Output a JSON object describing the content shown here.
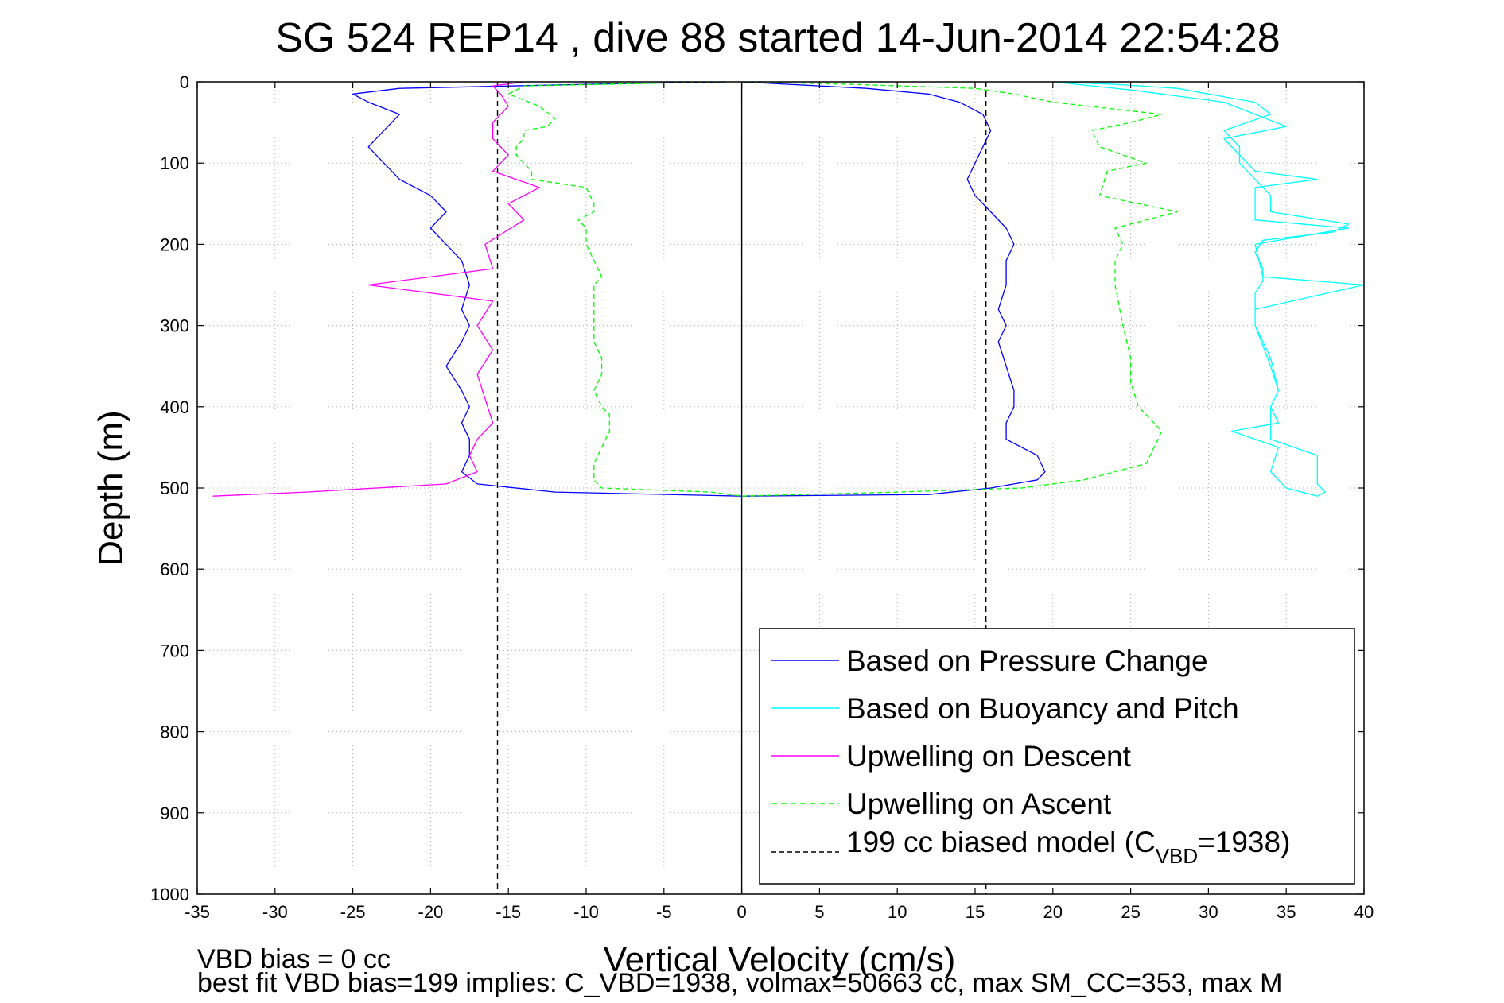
{
  "chart_data": {
    "type": "line",
    "title": "SG 524   REP14  , dive 88 started 14-Jun-2014 22:54:28",
    "xlabel": "Vertical Velocity (cm/s)",
    "ylabel": "Depth (m)",
    "xlim": [
      -35,
      40
    ],
    "ylim": [
      0,
      1000
    ],
    "y_reversed": true,
    "grid": true,
    "legend_position": "bottom-right",
    "x_ticks": [
      -35,
      -30,
      -25,
      -20,
      -15,
      -10,
      -5,
      0,
      5,
      10,
      15,
      20,
      25,
      30,
      35,
      40
    ],
    "y_ticks": [
      0,
      100,
      200,
      300,
      400,
      500,
      600,
      700,
      800,
      900,
      1000
    ],
    "reference_lines": [
      {
        "type": "vertical",
        "x": 0,
        "style": "solid",
        "color": "#000000"
      },
      {
        "type": "vertical",
        "x": -15.7,
        "style": "dashed",
        "color": "#000000"
      },
      {
        "type": "vertical",
        "x": 15.7,
        "style": "dashed",
        "color": "#000000"
      }
    ],
    "series": [
      {
        "name": "Based on Pressure Change",
        "color": "#0000ff",
        "style": "solid",
        "depth": [
          0,
          3,
          8,
          15,
          25,
          40,
          60,
          80,
          100,
          120,
          140,
          160,
          180,
          200,
          220,
          250,
          280,
          300,
          320,
          350,
          380,
          400,
          420,
          440,
          460,
          480,
          495,
          505,
          510,
          508,
          500,
          490,
          480,
          460,
          440,
          420,
          400,
          380,
          350,
          320,
          300,
          280,
          250,
          220,
          200,
          180,
          160,
          140,
          120,
          100,
          80,
          60,
          40,
          25,
          15,
          8,
          3,
          0
        ],
        "values": [
          -1,
          -10,
          -22,
          -25,
          -24,
          -22,
          -23,
          -24,
          -23,
          -22,
          -20,
          -19,
          -20,
          -19,
          -18,
          -17.5,
          -18,
          -17.5,
          -18,
          -19,
          -18,
          -17.5,
          -18,
          -17.5,
          -17.5,
          -18,
          -17,
          -12,
          0,
          12,
          16,
          19,
          19.5,
          19,
          17,
          17,
          17.5,
          17.5,
          17,
          16.5,
          17,
          16.5,
          17,
          17,
          17.5,
          17,
          16,
          15,
          14.5,
          15,
          15.5,
          16,
          15.5,
          14,
          12,
          8,
          3,
          0
        ]
      },
      {
        "name": "Based on Buoyancy and Pitch",
        "color": "#00ffff",
        "style": "solid",
        "depth": [
          0,
          10,
          25,
          40,
          55,
          70,
          90,
          110,
          120,
          130,
          150,
          170,
          180,
          200,
          240,
          250,
          280,
          300,
          350,
          380,
          400,
          420,
          430,
          450,
          480,
          500,
          510,
          505,
          495,
          480,
          470,
          460,
          440,
          420,
          400,
          380,
          340,
          300,
          280,
          260,
          245,
          230,
          210,
          195,
          185,
          175,
          160,
          140,
          120,
          100,
          80,
          60,
          40,
          25,
          15,
          8,
          3,
          0
        ],
        "values": [
          20,
          25,
          31,
          33,
          35,
          31,
          32,
          33,
          37,
          33,
          33,
          33,
          39,
          33,
          33.5,
          40,
          33,
          33,
          34,
          34.5,
          34,
          34.5,
          31.5,
          34.5,
          34,
          35,
          37,
          37.5,
          37,
          37,
          37,
          37,
          34,
          34,
          34,
          34.5,
          34,
          33,
          33,
          33,
          33.5,
          33.5,
          33,
          33.5,
          38,
          39,
          34,
          34,
          33,
          32,
          32,
          31,
          34,
          33,
          30,
          28,
          24,
          20
        ]
      },
      {
        "name": "Upwelling on Descent",
        "color": "#ff00ff",
        "style": "solid",
        "depth": [
          0,
          5,
          15,
          30,
          50,
          70,
          90,
          110,
          130,
          150,
          170,
          200,
          230,
          250,
          270,
          300,
          330,
          360,
          390,
          420,
          440,
          460,
          480,
          495,
          505,
          510
        ],
        "values": [
          -14,
          -16,
          -15.5,
          -15,
          -16,
          -16,
          -15,
          -16,
          -13,
          -15,
          -14,
          -16.5,
          -16,
          -24,
          -16,
          -17,
          -16,
          -17,
          -16.5,
          -16,
          -17,
          -17.5,
          -17,
          -19,
          -28,
          -34
        ]
      },
      {
        "name": "Upwelling on Ascent",
        "color": "#00ff00",
        "style": "dashed",
        "depth": [
          0,
          5,
          15,
          30,
          45,
          55,
          60,
          70,
          80,
          90,
          110,
          120,
          130,
          150,
          160,
          170,
          180,
          200,
          240,
          250,
          280,
          300,
          320,
          340,
          360,
          380,
          400,
          410,
          420,
          430,
          450,
          470,
          490,
          500,
          505,
          510,
          505,
          500,
          490,
          470,
          430,
          400,
          370,
          340,
          300,
          250,
          220,
          200,
          180,
          160,
          140,
          110,
          100,
          80,
          60,
          50,
          40,
          25,
          15,
          8,
          3,
          0
        ],
        "values": [
          -1,
          -14,
          -15,
          -13,
          -12,
          -12.5,
          -14,
          -14,
          -14.5,
          -14.5,
          -13.5,
          -13.5,
          -10,
          -9.5,
          -9.5,
          -10.5,
          -10,
          -10,
          -9,
          -9.5,
          -9.5,
          -9.5,
          -9.5,
          -9,
          -9,
          -9.5,
          -9,
          -8.5,
          -8.5,
          -8.5,
          -9,
          -9.5,
          -9.5,
          -9,
          -2,
          0,
          10,
          18,
          22,
          26,
          27,
          25.5,
          25,
          25,
          24.5,
          24,
          24,
          24.5,
          24,
          28,
          23,
          23.5,
          26,
          23,
          22.5,
          25,
          27,
          20,
          17.5,
          15,
          7,
          0
        ]
      },
      {
        "name": "199 cc biased model (C_VBD=1938)",
        "color": "#000000",
        "style": "dashed"
      }
    ]
  },
  "title_text": "SG 524   REP14  , dive 88 started 14-Jun-2014 22:54:28",
  "legend": {
    "items": [
      {
        "label": "Based on Pressure Change",
        "color": "#0000ff",
        "dash": "none"
      },
      {
        "label": "Based on Buoyancy and Pitch",
        "color": "#00ffff",
        "dash": "none"
      },
      {
        "label": "Upwelling on Descent",
        "color": "#ff00ff",
        "dash": "none"
      },
      {
        "label": "Upwelling on Ascent",
        "color": "#00ff00",
        "dash": "7,5"
      }
    ],
    "model_prefix": "199 cc biased model (C",
    "model_sub": "VBD",
    "model_suffix": "=1938)",
    "model_color": "#000000"
  },
  "footer": {
    "line1": "VBD bias = 0 cc",
    "line2": "best fit VBD bias=199 implies: C_VBD=1938, volmax=50663 cc, max SM_CC=353, max M"
  }
}
